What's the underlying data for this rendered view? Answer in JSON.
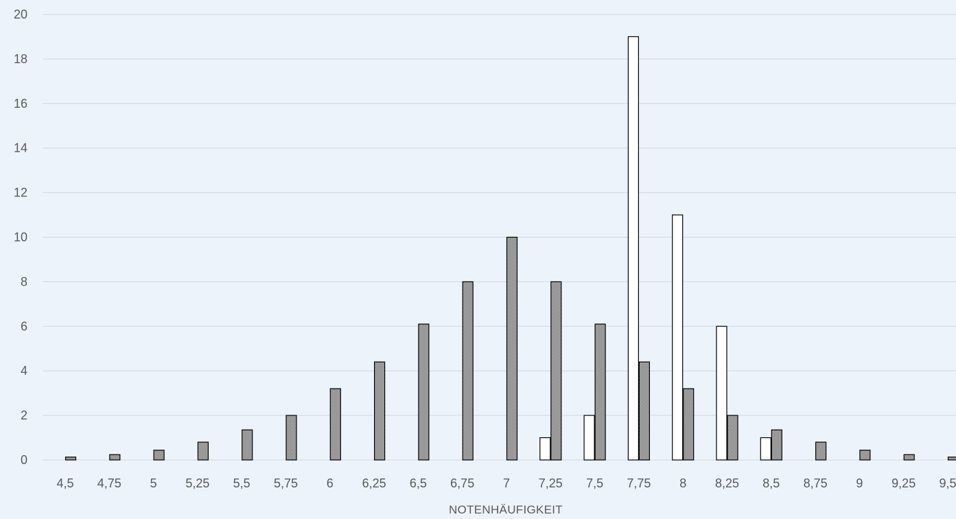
{
  "chart_data": {
    "type": "bar",
    "title": "",
    "xlabel": "NOTENHÄUFIGKEIT",
    "ylabel": "",
    "ylim": [
      0,
      20
    ],
    "yticks": [
      0,
      2,
      4,
      6,
      8,
      10,
      12,
      14,
      16,
      18,
      20
    ],
    "grid": true,
    "legend": "none",
    "categories": [
      "4,5",
      "4,75",
      "5",
      "5,25",
      "5,5",
      "5,75",
      "6",
      "6,25",
      "6,5",
      "6,75",
      "7",
      "7,25",
      "7,5",
      "7,75",
      "8",
      "8,25",
      "8,5",
      "8,75",
      "9",
      "9,25",
      "9,5"
    ],
    "series": [
      {
        "fill": "#ffffff",
        "pattern": "none",
        "values": [
          0,
          0,
          0,
          0,
          0,
          0,
          0,
          0,
          0,
          0,
          0,
          1,
          2,
          19,
          11,
          6,
          1,
          0,
          0,
          0,
          0
        ]
      },
      {
        "fill": "#7f7f7f",
        "pattern": "checkerboard",
        "values": [
          0.13,
          0.24,
          0.44,
          0.8,
          1.35,
          2.0,
          3.2,
          4.4,
          6.1,
          8.0,
          10.0,
          8.0,
          6.1,
          4.4,
          3.2,
          2.0,
          1.35,
          0.8,
          0.44,
          0.24,
          0.13
        ]
      }
    ],
    "colors": {
      "background": "#ecf3fb",
      "grid": "#d0d7df",
      "text": "#595959",
      "outline": "#000000"
    }
  }
}
